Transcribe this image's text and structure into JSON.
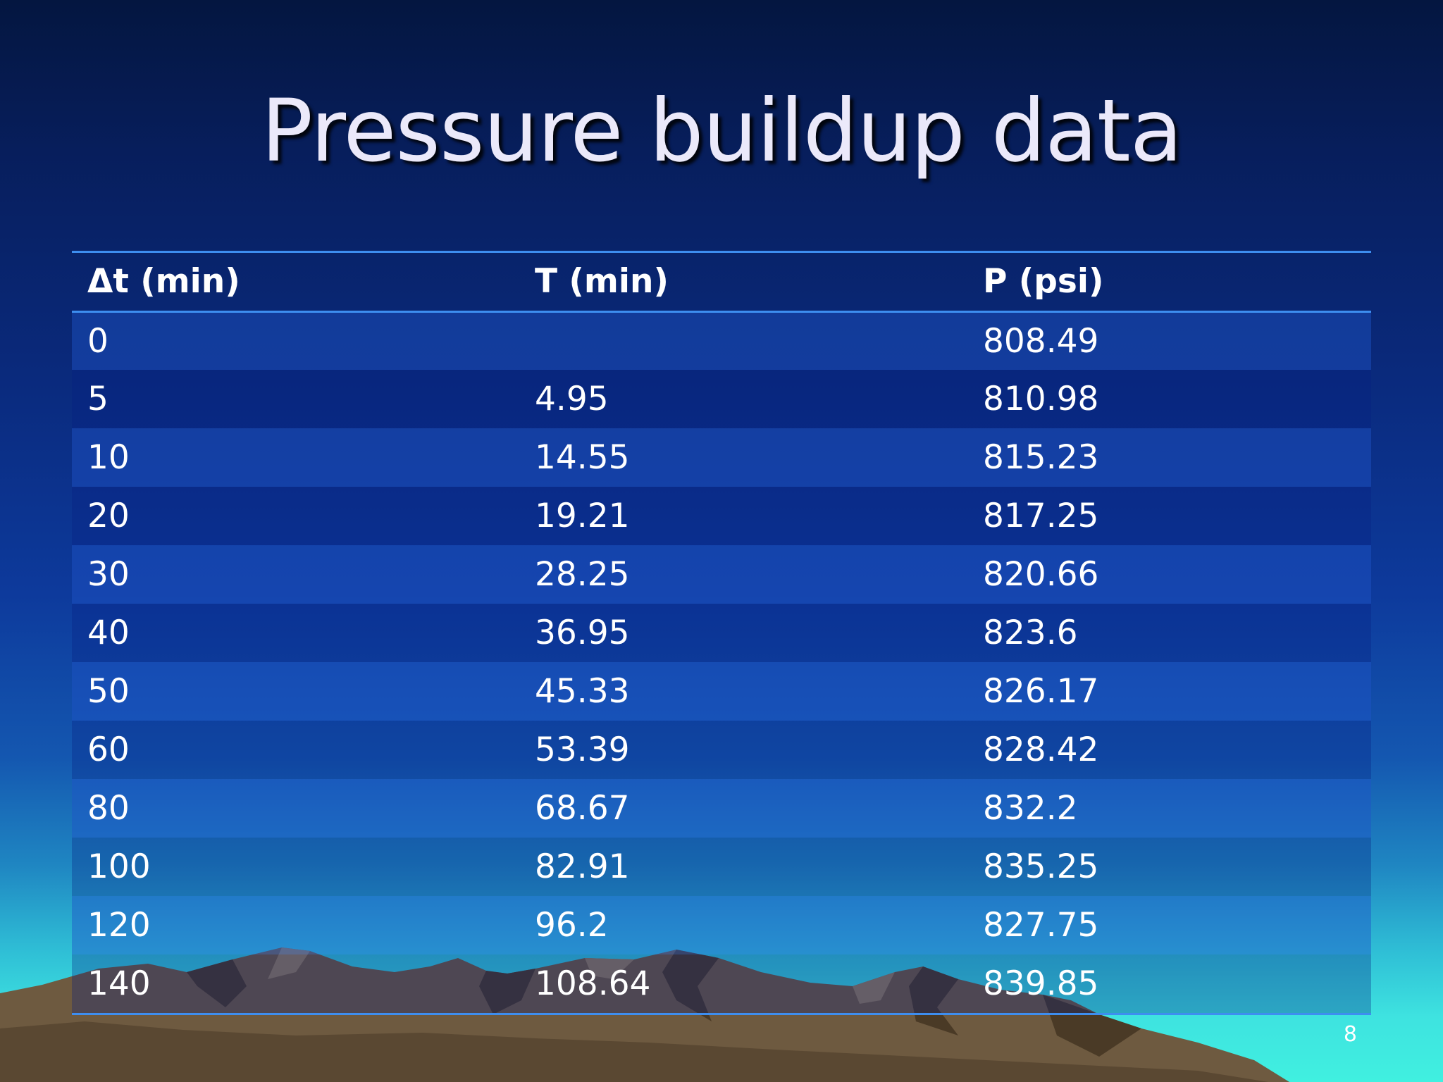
{
  "slide": {
    "title": "Pressure buildup data",
    "number": "8"
  },
  "table": {
    "headers": [
      "Δt (min)",
      "T (min)",
      "P (psi)"
    ],
    "rows": [
      [
        "0",
        "",
        "808.49"
      ],
      [
        "5",
        "4.95",
        "810.98"
      ],
      [
        "10",
        "14.55",
        "815.23"
      ],
      [
        "20",
        "19.21",
        "817.25"
      ],
      [
        "30",
        "28.25",
        "820.66"
      ],
      [
        "40",
        "36.95",
        "823.6"
      ],
      [
        "50",
        "45.33",
        "826.17"
      ],
      [
        "60",
        "53.39",
        "828.42"
      ],
      [
        "80",
        "68.67",
        "832.2"
      ],
      [
        "100",
        "82.91",
        "835.25"
      ],
      [
        "120",
        "96.2",
        "827.75"
      ],
      [
        "140",
        "108.64",
        "839.85"
      ]
    ]
  },
  "colors": {
    "header_rule": "#3d8ef0",
    "title_text": "#ebe9fa",
    "mountain": "#6e5a40"
  }
}
